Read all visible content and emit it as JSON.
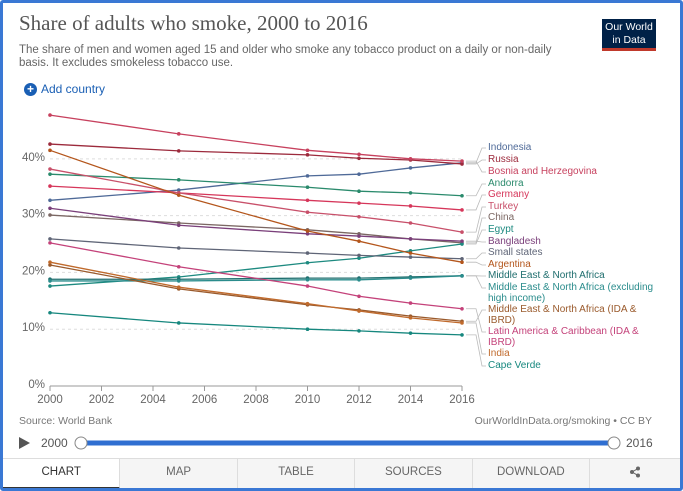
{
  "header": {
    "title": "Share of adults who smoke, 2000 to 2016",
    "subtitle": "The share of men and women aged 15 and older who smoke any tobacco product on a daily or non-daily basis. It excludes smokeless tobacco use.",
    "logo": "Our World in Data",
    "add_country": "Add country"
  },
  "footer": {
    "source": "Source: World Bank",
    "license": "OurWorldInData.org/smoking • CC BY"
  },
  "timeline": {
    "start": 2000,
    "end": 2016
  },
  "tabs": [
    "CHART",
    "MAP",
    "TABLE",
    "SOURCES",
    "DOWNLOAD"
  ],
  "chart_data": {
    "type": "line",
    "x": [
      2000,
      2005,
      2010,
      2012,
      2014,
      2016
    ],
    "xlim": [
      2000,
      2016
    ],
    "xticks": [
      2000,
      2002,
      2004,
      2006,
      2008,
      2010,
      2012,
      2014,
      2016
    ],
    "ylim": [
      0,
      48
    ],
    "yticks": [
      {
        "value": 0,
        "label": "0%"
      },
      {
        "value": 10,
        "label": "10%"
      },
      {
        "value": 20,
        "label": "20%"
      },
      {
        "value": 30,
        "label": "30%"
      },
      {
        "value": 40,
        "label": "40%"
      }
    ],
    "grid": true,
    "series": [
      {
        "name": "Indonesia",
        "color": "#4f6a98",
        "values": [
          32.7,
          34.5,
          37,
          37.3,
          38.4,
          39.3
        ]
      },
      {
        "name": "Russia",
        "color": "#9c2a3c",
        "values": [
          42.6,
          41.4,
          40.7,
          40.1,
          39.8,
          39.1
        ]
      },
      {
        "name": "Bosnia and Herzegovina",
        "color": "#c7415e",
        "values": [
          47.7,
          44.4,
          41.5,
          40.8,
          40,
          39.6
        ]
      },
      {
        "name": "Andorra",
        "color": "#2a8a6c",
        "values": [
          37.3,
          36.3,
          35,
          34.3,
          34,
          33.5
        ]
      },
      {
        "name": "Germany",
        "color": "#d6365a",
        "values": [
          35.2,
          34,
          32.7,
          32.2,
          31.7,
          31
        ]
      },
      {
        "name": "Turkey",
        "color": "#c8506a",
        "values": [
          38.2,
          34,
          30.6,
          29.8,
          28.7,
          27.1
        ]
      },
      {
        "name": "China",
        "color": "#7b6763",
        "values": [
          30.1,
          28.7,
          27.5,
          26.8,
          25.9,
          25.2
        ]
      },
      {
        "name": "Egypt",
        "color": "#1d8a80",
        "values": [
          17.6,
          19.2,
          21.7,
          22.5,
          23.8,
          25
        ]
      },
      {
        "name": "Bangladesh",
        "color": "#7a3f7a",
        "values": [
          31.3,
          28.3,
          26.8,
          26.4,
          25.9,
          25.5
        ]
      },
      {
        "name": "Small states",
        "color": "#5f6577",
        "values": [
          25.9,
          24.3,
          23.4,
          23,
          22.7,
          22.4
        ]
      },
      {
        "name": "Argentina",
        "color": "#b4561c",
        "values": [
          41.5,
          33.6,
          27.3,
          25.5,
          23.4,
          21.8
        ]
      },
      {
        "name": "Middle East & North Africa",
        "color": "#1f6e6e",
        "values": [
          18.8,
          18.8,
          19,
          19,
          19.2,
          19.4
        ]
      },
      {
        "name": "Middle East & North Africa (excluding high income)",
        "color": "#2a8c8c",
        "values": [
          18.5,
          18.5,
          18.7,
          18.7,
          19,
          19.4
        ]
      },
      {
        "name": "Middle East & North Africa (IDA & IBRD)",
        "color": "#9a5a2c",
        "values": [
          21.3,
          17.1,
          14.3,
          13.4,
          12.3,
          11.4
        ]
      },
      {
        "name": "Latin America & Caribbean (IDA & IBRD)",
        "color": "#c4427a",
        "values": [
          25.2,
          21,
          17.6,
          15.8,
          14.6,
          13.6
        ]
      },
      {
        "name": "India",
        "color": "#c06a2c",
        "values": [
          21.8,
          17.4,
          14.5,
          13.2,
          12,
          11.1
        ]
      },
      {
        "name": "Cape Verde",
        "color": "#16877e",
        "values": [
          12.9,
          11.1,
          10,
          9.7,
          9.3,
          9
        ]
      }
    ]
  }
}
